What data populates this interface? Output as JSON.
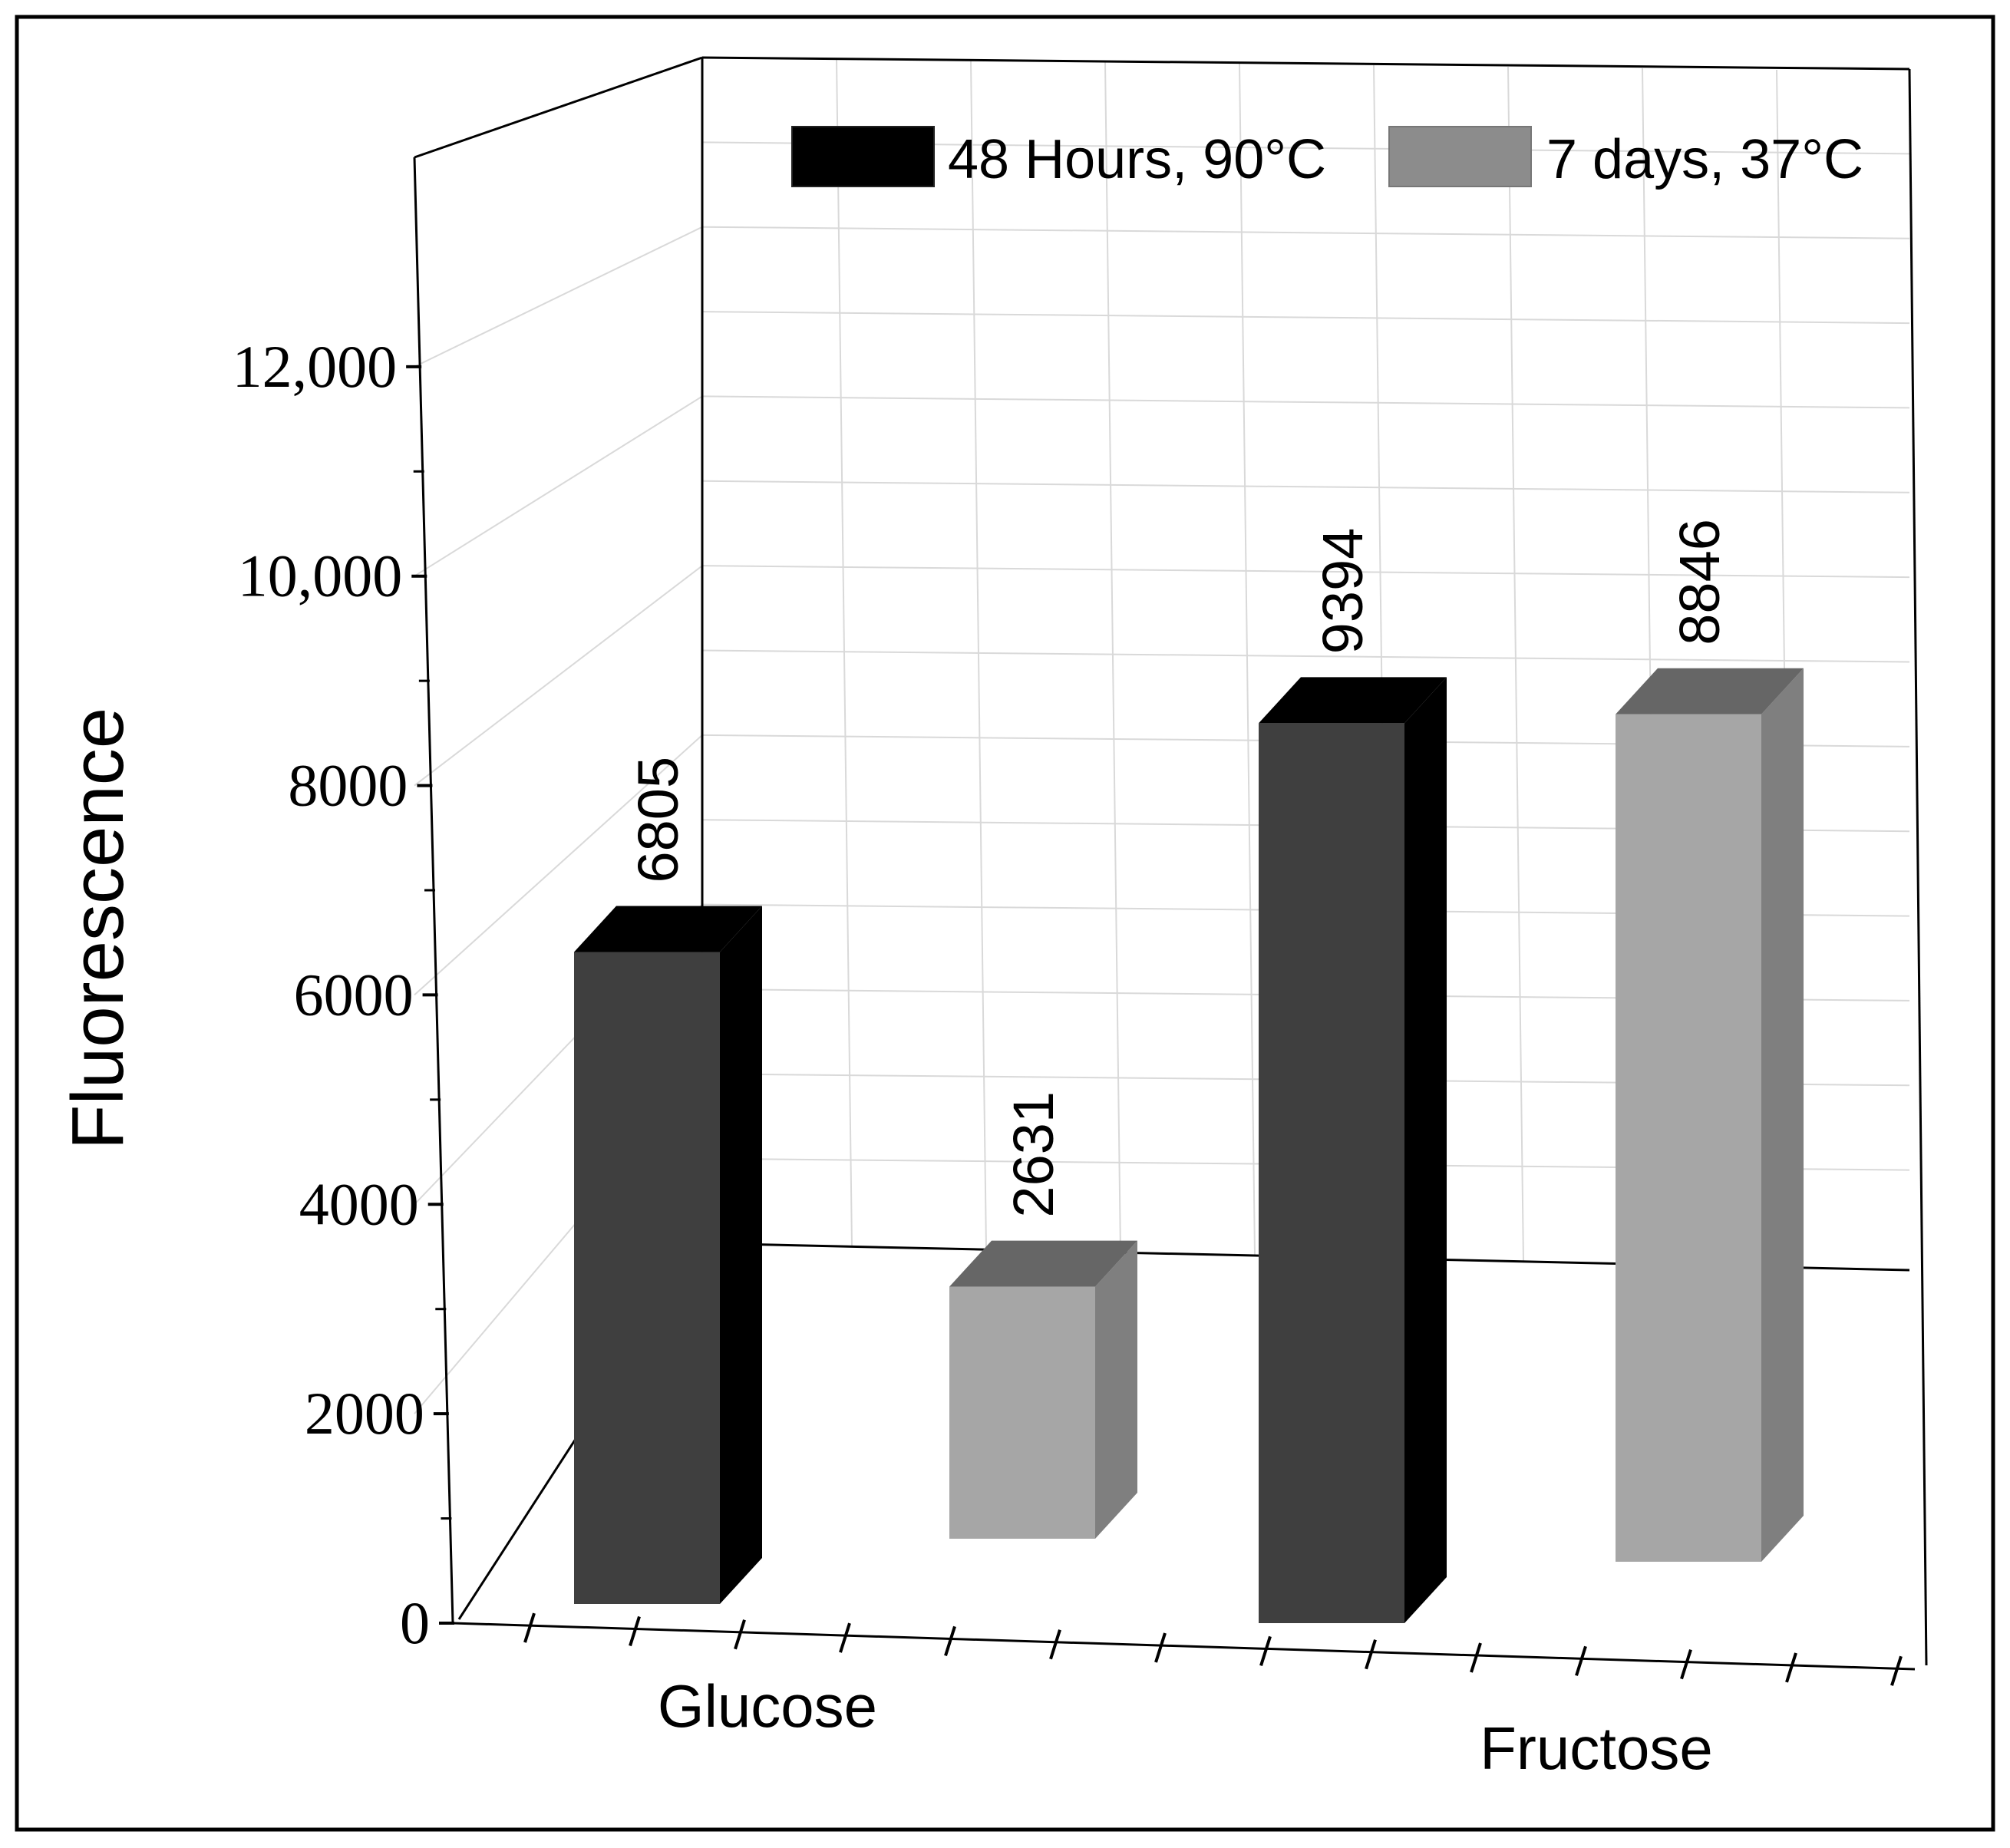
{
  "chart_data": {
    "type": "bar",
    "style": "3d",
    "ylabel": "Fluorescence",
    "ylim": [
      0,
      14000
    ],
    "yticks": [
      0,
      2000,
      4000,
      6000,
      8000,
      10000,
      12000
    ],
    "ytick_labels": [
      "0",
      "2000",
      "4000",
      "6000",
      "8000",
      "10,000",
      "12,000"
    ],
    "categories": [
      "Glucose",
      "Fructose"
    ],
    "series": [
      {
        "name": "48 Hours, 90°C",
        "values": [
          6805,
          9394
        ],
        "value_labels": [
          "6805",
          "9394"
        ],
        "color": "#3f3f3f",
        "side_color": "#000000",
        "top_color": "#000000"
      },
      {
        "name": "7 days, 37°C",
        "values": [
          2631,
          8846
        ],
        "value_labels": [
          "2631",
          "8846"
        ],
        "color": "#a6a6a6",
        "side_color": "#7f7f7f",
        "top_color": "#666666"
      }
    ],
    "legend_position": "top-right",
    "grid": true,
    "colors": {
      "frame": "#000000",
      "grid": "#d9d9d9",
      "background": "#ffffff"
    }
  }
}
